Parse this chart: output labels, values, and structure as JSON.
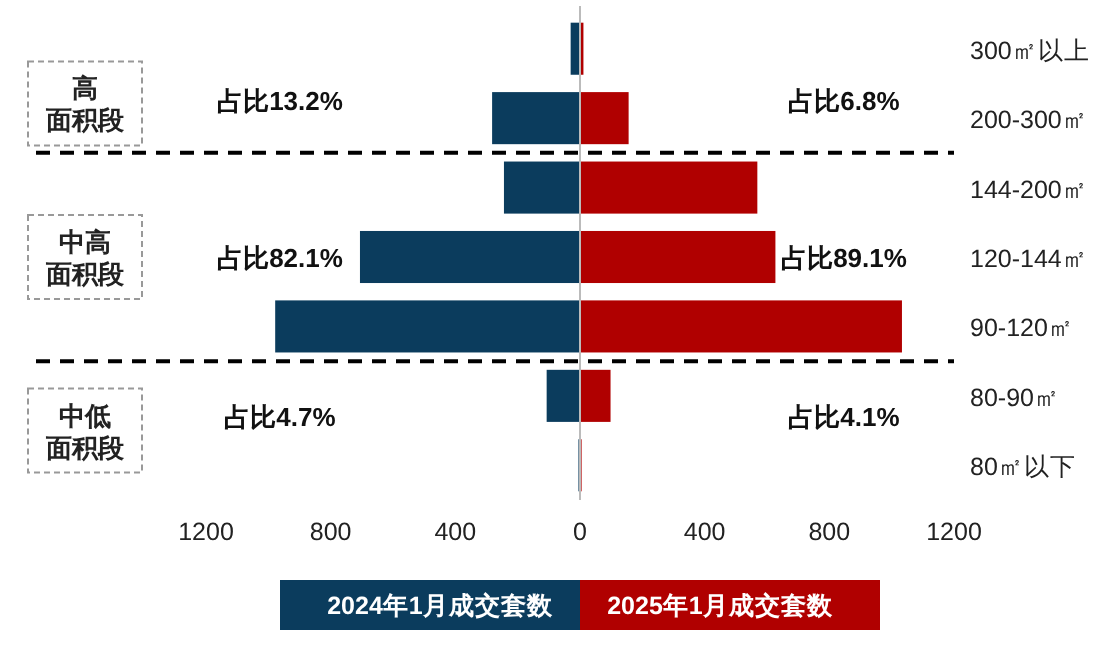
{
  "chart_data": {
    "type": "bar",
    "orientation": "horizontal",
    "stacked": true,
    "categories": [
      "300㎡以上",
      "200-300㎡",
      "144-200㎡",
      "120-144㎡",
      "90-120㎡",
      "80-90㎡",
      "80㎡以下"
    ],
    "series": [
      {
        "name": "2024年1月成交套数",
        "color": "#0b3c5d",
        "values": [
          -30,
          -282,
          -244,
          -706,
          -978,
          -107,
          -5
        ]
      },
      {
        "name": "2025年1月成交套数",
        "color": "#b00000",
        "values": [
          11,
          156,
          569,
          627,
          1033,
          98,
          2
        ]
      }
    ],
    "xlim": [
      -1200,
      1200
    ],
    "xticks": [
      {
        "value": -1200,
        "label": "1200"
      },
      {
        "value": -800,
        "label": "800"
      },
      {
        "value": -400,
        "label": "400"
      },
      0,
      400,
      800,
      1200
    ],
    "ref_lines": [
      {
        "axis": "y",
        "value": "200-300㎡",
        "label": null,
        "line_style": "dashed",
        "color": "#000000"
      },
      {
        "axis": "y",
        "value": "90-120㎡",
        "label": null,
        "line_style": "dashed",
        "color": "#000000"
      }
    ],
    "annotations": [
      "占比13.2%",
      "占比6.8%",
      "占比82.1%",
      "占比89.1%",
      "占比4.7%",
      "占比4.1%",
      "高",
      "面积段",
      "中高",
      "面积段",
      "中低",
      "面积段"
    ],
    "grid": false,
    "legend": "bottom"
  }
}
